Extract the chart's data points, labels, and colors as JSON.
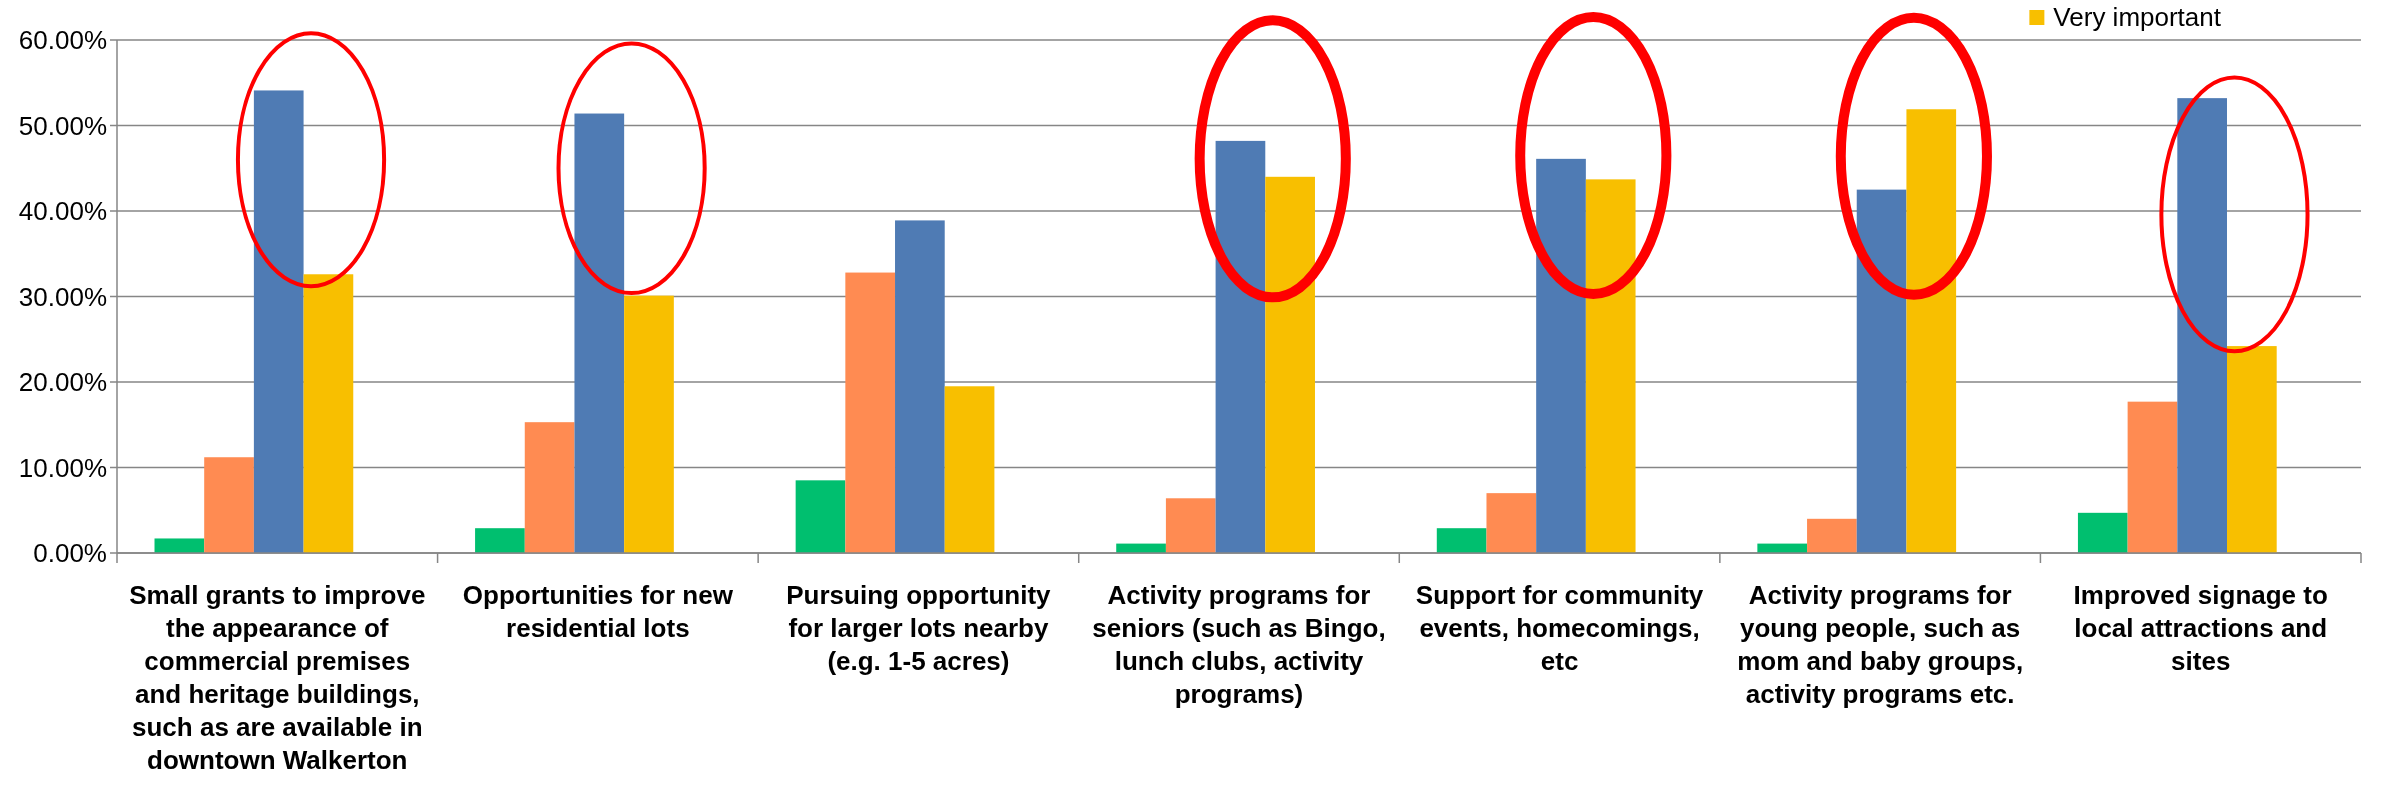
{
  "chart_data": {
    "type": "bar",
    "categories": [
      "Small grants to improve the appearance of commercial premises and heritage buildings, such as are available in downtown Walkerton",
      "Opportunities for new residential lots",
      "Pursuing opportunity for larger lots nearby (e.g. 1-5 acres)",
      "Activity programs for seniors (such as Bingo, lunch clubs, activity programs)",
      "Support for community events, homecomings, etc",
      "Activity programs for young people, such as mom and baby groups, activity programs etc.",
      "Improved signage to local attractions and sites"
    ],
    "series": [
      {
        "color": "#00bf6f",
        "values": [
          1.7,
          2.9,
          8.5,
          1.1,
          2.9,
          1.1,
          4.7
        ]
      },
      {
        "color": "#ff8b52",
        "values": [
          11.2,
          15.3,
          32.8,
          6.4,
          7.0,
          4.0,
          17.7
        ]
      },
      {
        "color": "#4f7bb4",
        "values": [
          54.1,
          51.4,
          38.9,
          48.2,
          46.1,
          42.5,
          53.2
        ]
      },
      {
        "name": "Very important",
        "color": "#f8bf00",
        "values": [
          32.6,
          30.1,
          19.5,
          44.0,
          43.7,
          51.9,
          24.2
        ]
      }
    ],
    "ylim": [
      0,
      60
    ],
    "yticks": [
      {
        "value": 0,
        "label": "0.00%"
      },
      {
        "value": 10,
        "label": "10.00%"
      },
      {
        "value": 20,
        "label": "20.00%"
      },
      {
        "value": 30,
        "label": "30.00%"
      },
      {
        "value": 40,
        "label": "40.00%"
      },
      {
        "value": 50,
        "label": "50.00%"
      },
      {
        "value": 60,
        "label": "60.00%"
      }
    ],
    "grid": "y",
    "legend": "top right"
  }
}
